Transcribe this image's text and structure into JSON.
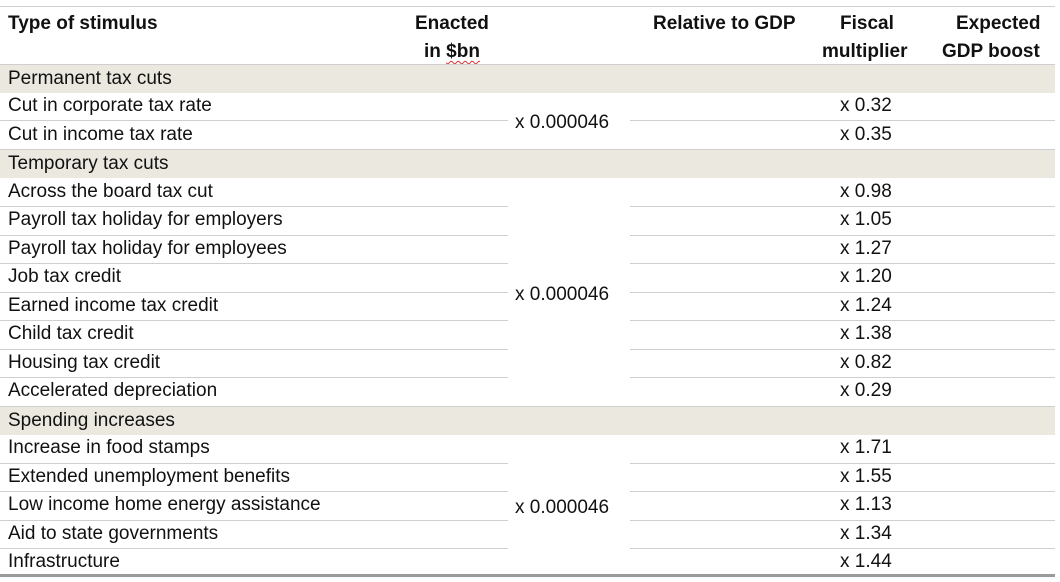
{
  "table": {
    "headers": {
      "type": "Type of stimulus",
      "enacted_line1": "Enacted",
      "enacted_prefix": "in ",
      "enacted_unit": "$bn",
      "relative": "Relative to GDP",
      "fiscal_line1": "Fiscal",
      "fiscal_line2": "multiplier",
      "expected_line1": "Expected",
      "expected_line2": "GDP boost"
    },
    "sections": [
      {
        "title": "Permanent tax cuts",
        "ratio": "x 0.000046",
        "rows": [
          {
            "label": "Cut in corporate tax rate",
            "multiplier": "x 0.32"
          },
          {
            "label": "Cut in income tax rate",
            "multiplier": "x 0.35"
          }
        ]
      },
      {
        "title": "Temporary tax cuts",
        "ratio": "x 0.000046",
        "rows": [
          {
            "label": "Across the board tax cut",
            "multiplier": "x 0.98"
          },
          {
            "label": "Payroll tax holiday for employers",
            "multiplier": "x 1.05"
          },
          {
            "label": "Payroll tax holiday for employees",
            "multiplier": "x 1.27"
          },
          {
            "label": "Job tax credit",
            "multiplier": "x 1.20"
          },
          {
            "label": "Earned income tax credit",
            "multiplier": "x 1.24"
          },
          {
            "label": "Child tax credit",
            "multiplier": "x 1.38"
          },
          {
            "label": "Housing tax credit",
            "multiplier": "x 0.82"
          },
          {
            "label": "Accelerated depreciation",
            "multiplier": "x 0.29"
          }
        ]
      },
      {
        "title": "Spending increases",
        "ratio": "x 0.000046",
        "rows": [
          {
            "label": "Increase in food stamps",
            "multiplier": "x 1.71"
          },
          {
            "label": "Extended unemployment benefits",
            "multiplier": "x 1.55"
          },
          {
            "label": "Low income home energy assistance",
            "multiplier": "x 1.13"
          },
          {
            "label": "Aid to state governments",
            "multiplier": "x 1.34"
          },
          {
            "label": "Infrastructure",
            "multiplier": "x 1.44"
          }
        ]
      }
    ]
  }
}
